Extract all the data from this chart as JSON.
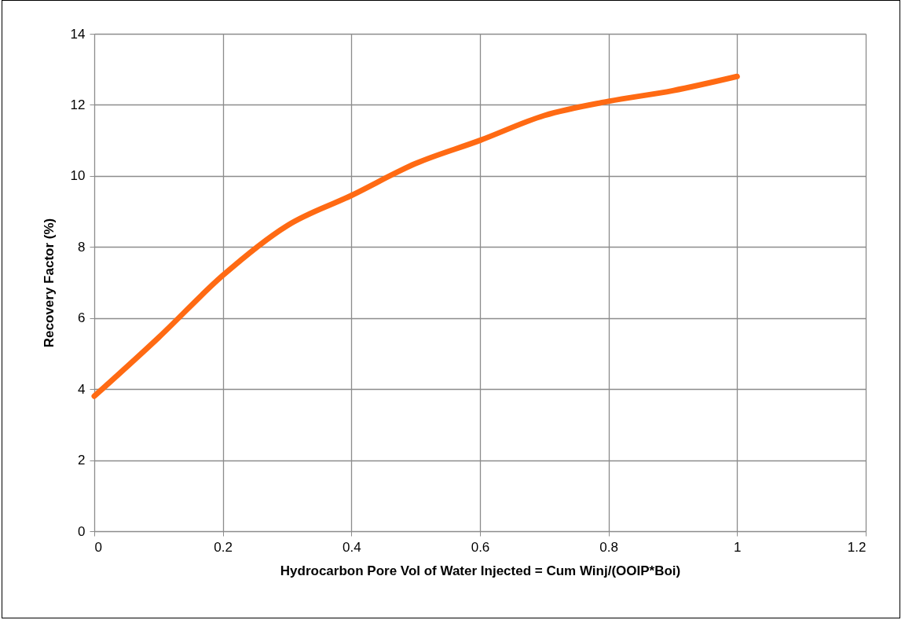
{
  "chart_data": {
    "type": "line",
    "xlabel": "Hydrocarbon Pore Vol of Water Injected = Cum Winj/(OOIP*Boi)",
    "ylabel": "Recovery Factor (%)",
    "x": [
      0,
      0.1,
      0.2,
      0.3,
      0.4,
      0.5,
      0.6,
      0.7,
      0.8,
      0.9,
      1.0
    ],
    "series": [
      {
        "color": "#ff6a13",
        "values": [
          3.8,
          5.45,
          7.2,
          8.6,
          9.45,
          10.35,
          11.0,
          11.7,
          12.1,
          12.4,
          12.8
        ]
      }
    ],
    "xlim": [
      0,
      1.2
    ],
    "xticks": [
      0,
      0.2,
      0.4,
      0.6,
      0.8,
      1,
      1.2
    ],
    "ylim": [
      0,
      14
    ],
    "yticks": [
      0,
      2,
      4,
      6,
      8,
      10,
      12,
      14
    ],
    "grid": true,
    "legend": false,
    "marker": "none",
    "line_style": "solid"
  }
}
